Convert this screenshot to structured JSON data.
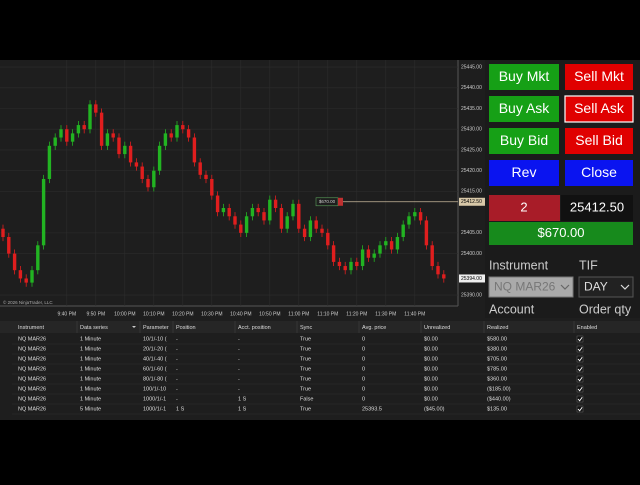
{
  "chart_data": {
    "type": "candlestick",
    "categories": [
      null,
      null,
      null,
      null,
      null,
      null,
      null,
      null,
      null,
      null,
      null,
      "9:40 PM",
      null,
      null,
      null,
      null,
      "9:50 PM",
      null,
      null,
      null,
      null,
      "10:00 PM",
      null,
      null,
      null,
      null,
      "10:10 PM",
      null,
      null,
      null,
      null,
      "10:20 PM",
      null,
      null,
      null,
      null,
      "10:30 PM",
      null,
      null,
      null,
      null,
      "10:40 PM",
      null,
      null,
      null,
      null,
      "10:50 PM",
      null,
      null,
      null,
      null,
      "11:00 PM",
      null,
      null,
      null,
      null,
      "11:10 PM",
      null,
      null,
      null,
      null,
      "11:20 PM",
      null,
      null,
      null,
      null,
      "11:30 PM",
      null,
      null,
      null,
      null,
      "11:40 PM",
      null,
      null,
      null,
      null,
      null
    ],
    "open": [
      25406,
      25404,
      25400,
      25396,
      25394,
      25393,
      25396,
      25402,
      25418,
      25426,
      25428,
      25430,
      25427,
      25429,
      25431,
      25430,
      25436,
      25434,
      25426,
      25429,
      25428,
      25424,
      25426,
      25422,
      25421,
      25418,
      25416,
      25420,
      25426,
      25429,
      25428,
      25431,
      25430,
      25428,
      25422,
      25419,
      25418,
      25414,
      25410,
      25411,
      25409,
      25407,
      25405,
      25409,
      25411,
      25410,
      25408,
      25413,
      25411,
      25406,
      25409,
      25412,
      25406,
      25404,
      25408,
      25406,
      25405,
      25402,
      25398,
      25397,
      25396,
      25398,
      25397,
      25401,
      25399,
      25400,
      25402,
      25403,
      25401,
      25404,
      25407,
      25409,
      25410,
      25408,
      25402,
      25397,
      25395
    ],
    "high": [
      25407,
      25405,
      25401,
      25397,
      25395,
      25397,
      25403,
      25419,
      25427,
      25429,
      25431,
      25431,
      25430,
      25432,
      25432,
      25437,
      25437,
      25435,
      25430,
      25430,
      25429,
      25427,
      25427,
      25423,
      25422,
      25419,
      25421,
      25427,
      25430,
      25430,
      25432,
      25432,
      25431,
      25429,
      25423,
      25420,
      25419,
      25415,
      25412,
      25412,
      25410,
      25408,
      25410,
      25412,
      25412,
      25411,
      25414,
      25414,
      25412,
      25410,
      25413,
      25413,
      25407,
      25409,
      25409,
      25407,
      25406,
      25403,
      25399,
      25398,
      25399,
      25399,
      25402,
      25402,
      25401,
      25403,
      25404,
      25404,
      25405,
      25408,
      25410,
      25411,
      25411,
      25409,
      25403,
      25398,
      25396
    ],
    "low": [
      25403,
      25399,
      25395,
      25393,
      25392,
      25392,
      25395,
      25401,
      25417,
      25425,
      25427,
      25426,
      25426,
      25428,
      25429,
      25429,
      25433,
      25425,
      25425,
      25427,
      25423,
      25423,
      25421,
      25420,
      25417,
      25415,
      25415,
      25419,
      25425,
      25427,
      25427,
      25429,
      25427,
      25421,
      25418,
      25417,
      25413,
      25409,
      25409,
      25408,
      25406,
      25404,
      25404,
      25408,
      25409,
      25407,
      25407,
      25410,
      25405,
      25405,
      25408,
      25405,
      25403,
      25403,
      25405,
      25404,
      25401,
      25397,
      25396,
      25395,
      25395,
      25396,
      25396,
      25398,
      25398,
      25399,
      25401,
      25400,
      25400,
      25403,
      25406,
      25408,
      25407,
      25401,
      25396,
      25394,
      25393
    ],
    "close": [
      25404,
      25400,
      25396,
      25394,
      25393,
      25396,
      25402,
      25418,
      25426,
      25428,
      25430,
      25427,
      25429,
      25431,
      25430,
      25436,
      25434,
      25426,
      25429,
      25428,
      25424,
      25426,
      25422,
      25421,
      25418,
      25416,
      25420,
      25426,
      25429,
      25428,
      25431,
      25430,
      25428,
      25422,
      25419,
      25418,
      25414,
      25410,
      25411,
      25409,
      25407,
      25405,
      25409,
      25411,
      25410,
      25408,
      25413,
      25411,
      25406,
      25409,
      25412,
      25406,
      25404,
      25408,
      25406,
      25405,
      25402,
      25398,
      25397,
      25396,
      25398,
      25397,
      25401,
      25399,
      25400,
      25402,
      25403,
      25401,
      25404,
      25407,
      25409,
      25410,
      25408,
      25402,
      25397,
      25395,
      25394
    ],
    "up_color": "#22b422",
    "down_color": "#e01e1e",
    "ylim": [
      25387.6,
      25446.7
    ],
    "yticks": [
      {
        "value": 25445,
        "label": "25445.00"
      },
      {
        "value": 25440,
        "label": "25440.00"
      },
      {
        "value": 25435,
        "label": "25435.00"
      },
      {
        "value": 25430,
        "label": "25430.00"
      },
      {
        "value": 25425,
        "label": "25425.00"
      },
      {
        "value": 25420,
        "label": "25420.00"
      },
      {
        "value": 25415,
        "label": "25415.00"
      },
      {
        "value": 25405,
        "label": "25405.00"
      },
      {
        "value": 25400,
        "label": "25400.00"
      },
      {
        "value": 25390,
        "label": "25390.00"
      }
    ],
    "grid": true,
    "position_line": {
      "value": 25412.5,
      "label": "25412.50",
      "pnl": "$670.00"
    },
    "last_price": {
      "value": 25394,
      "label": "25394.00"
    },
    "copyright": "© 2026 NinjaTrader, LLC"
  },
  "order_panel": {
    "buttons": [
      {
        "label": "Buy Mkt",
        "color": "#16a016"
      },
      {
        "label": "Sell Mkt",
        "color": "#e00000"
      },
      {
        "label": "Buy Ask",
        "color": "#16a016"
      },
      {
        "label": "Sell Ask",
        "color": "#e00000"
      },
      {
        "label": "Buy Bid",
        "color": "#16a016"
      },
      {
        "label": "Sell Bid",
        "color": "#e00000"
      },
      {
        "label": "Rev",
        "color": "#0a14f0"
      },
      {
        "label": "Close",
        "color": "#0a14f0"
      }
    ],
    "quantity": "2",
    "avg_price": "25412.50",
    "pnl": "$670.00",
    "instrument_label": "Instrument",
    "tif_label": "TIF",
    "instrument": "NQ MAR26",
    "tif": "DAY",
    "account_label": "Account",
    "order_qty_label": "Order qty"
  },
  "grid": {
    "columns": [
      "Instrument",
      "Data series",
      "Parameter",
      "Position",
      "Acct. position",
      "Sync",
      "Avg. price",
      "Unrealized",
      "Realized",
      "Enabled"
    ],
    "rows": [
      [
        "NQ MAR26",
        "1 Minute",
        "10/1/-10 (",
        "-",
        "-",
        "True",
        "0",
        "$0.00",
        "$580.00"
      ],
      [
        "NQ MAR26",
        "1 Minute",
        "20/1/-20 (",
        "-",
        "-",
        "True",
        "0",
        "$0.00",
        "$380.00"
      ],
      [
        "NQ MAR26",
        "1 Minute",
        "40/1/-40 (",
        "-",
        "-",
        "True",
        "0",
        "$0.00",
        "$705.00"
      ],
      [
        "NQ MAR26",
        "1 Minute",
        "60/1/-60 (",
        "-",
        "-",
        "True",
        "0",
        "$0.00",
        "$785.00"
      ],
      [
        "NQ MAR26",
        "1 Minute",
        "80/1/-80 (",
        "-",
        "-",
        "True",
        "0",
        "$0.00",
        "$360.00"
      ],
      [
        "NQ MAR26",
        "1 Minute",
        "100/1/-10",
        "-",
        "-",
        "True",
        "0",
        "$0.00",
        "($185.00)"
      ],
      [
        "NQ MAR26",
        "1 Minute",
        "1000/1/-1",
        "-",
        "1 S",
        "False",
        "0",
        "$0.00",
        "($440.00)"
      ],
      [
        "NQ MAR26",
        "5 Minute",
        "1000/1/-1",
        "1 S",
        "1 S",
        "True",
        "25393.5",
        "($45.00)",
        "$135.00"
      ]
    ],
    "enabled": [
      true,
      true,
      true,
      true,
      true,
      true,
      true,
      true
    ]
  }
}
